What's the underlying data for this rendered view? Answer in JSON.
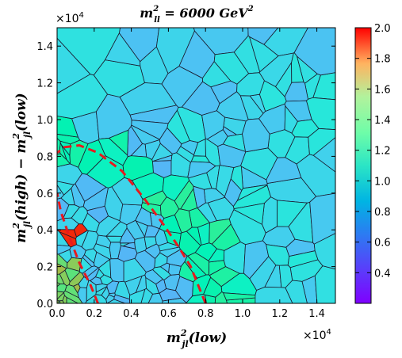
{
  "chart_data": {
    "type": "heatmap",
    "subtype": "voronoi-tessellation",
    "title": "m²_ll = 6000 GeV²",
    "title_parts": {
      "base": "m",
      "sup": "2",
      "sub": "ll",
      "rest": " = 6000 GeV",
      "rest_sup": "2"
    },
    "xlabel_parts": {
      "base": "m",
      "sup": "2",
      "sub": "jl",
      "rest": "(low)"
    },
    "ylabel_parts": {
      "base": "m",
      "sup": "2",
      "sub": "jl",
      "mid": "(high) − m",
      "sup2": "2",
      "sub2": "jl",
      "rest": "(low)"
    },
    "x_multiplier": "×10",
    "x_multiplier_exp": "4",
    "y_multiplier": "×10",
    "y_multiplier_exp": "4",
    "xlim": [
      0.0,
      1.5
    ],
    "ylim": [
      0.0,
      1.5
    ],
    "x_ticks": [
      "0.0",
      "0.2",
      "0.4",
      "0.6",
      "0.8",
      "1.0",
      "1.2",
      "1.4"
    ],
    "y_ticks": [
      "0.0",
      "0.2",
      "0.4",
      "0.6",
      "0.8",
      "1.0",
      "1.2",
      "1.4"
    ],
    "colorbar": {
      "range": [
        0.2,
        2.0
      ],
      "ticks": [
        "0.4",
        "0.6",
        "0.8",
        "1.0",
        "1.2",
        "1.4",
        "1.6",
        "1.8",
        "2.0"
      ],
      "colormap": "rainbow"
    },
    "boundaries": [
      {
        "name": "outer",
        "style": "dashed",
        "color": "#e8191d",
        "x": [
          0.8,
          0.76,
          0.72,
          0.66,
          0.58,
          0.47,
          0.35,
          0.22,
          0.12,
          0.04,
          0.0
        ],
        "y": [
          0.0,
          0.1,
          0.2,
          0.3,
          0.42,
          0.57,
          0.72,
          0.82,
          0.86,
          0.85,
          0.82
        ]
      },
      {
        "name": "inner",
        "style": "dashed",
        "color": "#e8191d",
        "x": [
          0.22,
          0.18,
          0.12,
          0.07,
          0.02,
          0.0
        ],
        "y": [
          0.0,
          0.1,
          0.22,
          0.35,
          0.5,
          0.6
        ]
      }
    ],
    "grid": false
  }
}
